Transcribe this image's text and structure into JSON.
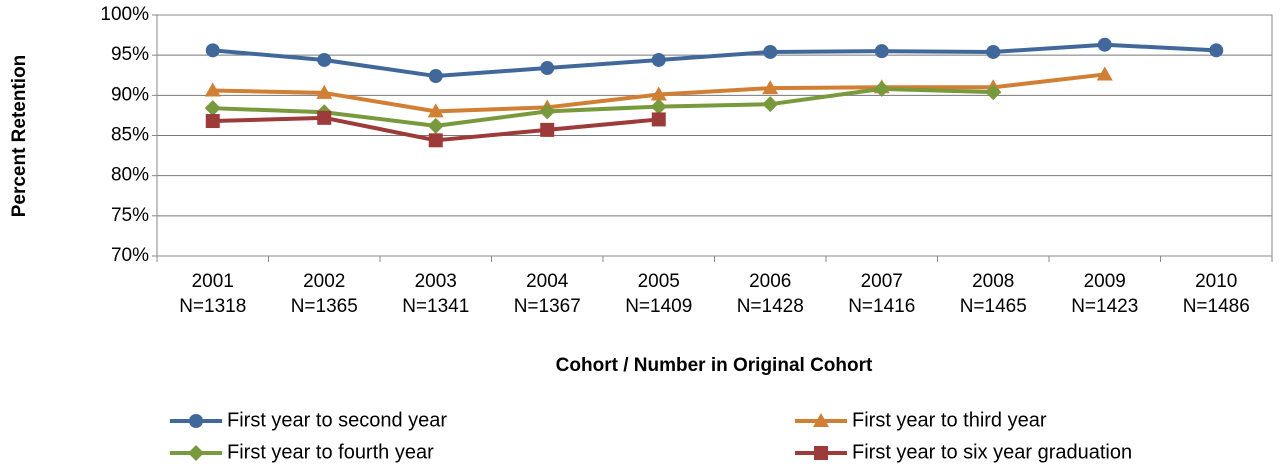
{
  "chart_data": {
    "type": "line",
    "x_label": "Cohort / Number in Original Cohort",
    "y_label": "Percent Retention",
    "categories": [
      "2001",
      "2002",
      "2003",
      "2004",
      "2005",
      "2006",
      "2007",
      "2008",
      "2009",
      "2010"
    ],
    "cohort_sizes": [
      "N=1318",
      "N=1365",
      "N=1341",
      "N=1367",
      "N=1409",
      "N=1428",
      "N=1416",
      "N=1465",
      "N=1423",
      "N=1486"
    ],
    "ylim": [
      70,
      100
    ],
    "yticks": [
      {
        "value": 70,
        "label": "70%"
      },
      {
        "value": 75,
        "label": "75%"
      },
      {
        "value": 80,
        "label": "80%"
      },
      {
        "value": 85,
        "label": "85%"
      },
      {
        "value": 90,
        "label": "90%"
      },
      {
        "value": 95,
        "label": "95%"
      },
      {
        "value": 100,
        "label": "100%"
      }
    ],
    "grid": true,
    "series": [
      {
        "name": "First year to second year",
        "color": "#41689b",
        "marker": "circle",
        "values": [
          95.6,
          94.4,
          92.4,
          93.4,
          94.4,
          95.4,
          95.5,
          95.4,
          96.3,
          95.6
        ]
      },
      {
        "name": "First year to third year",
        "color": "#d17f35",
        "marker": "triangle",
        "values": [
          90.6,
          90.3,
          88.0,
          88.5,
          90.1,
          90.9,
          91.0,
          91.0,
          92.6,
          null
        ]
      },
      {
        "name": "First year to fourth year",
        "color": "#789a3c",
        "marker": "diamond",
        "values": [
          88.4,
          87.9,
          86.2,
          88.0,
          88.6,
          88.9,
          90.8,
          90.4,
          null,
          null
        ]
      },
      {
        "name": "First year to six year graduation",
        "color": "#9c3b3a",
        "marker": "square",
        "values": [
          86.8,
          87.2,
          84.4,
          85.7,
          87.0,
          null,
          null,
          null,
          null,
          null
        ]
      }
    ]
  }
}
